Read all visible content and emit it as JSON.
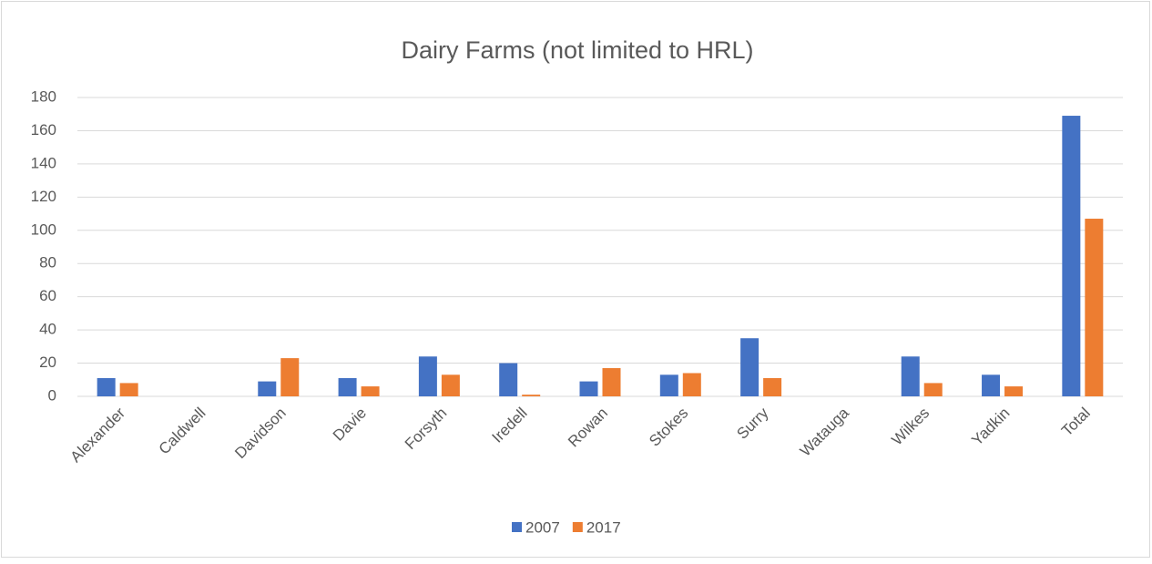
{
  "chart_data": {
    "type": "bar",
    "title": "Dairy Farms (not limited to HRL)",
    "categories": [
      "Alexander",
      "Caldwell",
      "Davidson",
      "Davie",
      "Forsyth",
      "Iredell",
      "Rowan",
      "Stokes",
      "Surry",
      "Watauga",
      "Wilkes",
      "Yadkin",
      "Total"
    ],
    "series": [
      {
        "name": "2007",
        "color": "#4472c4",
        "values": [
          11,
          0,
          9,
          11,
          24,
          20,
          9,
          13,
          35,
          0,
          24,
          13,
          169
        ]
      },
      {
        "name": "2017",
        "color": "#ed7d31",
        "values": [
          8,
          0,
          23,
          6,
          13,
          1,
          17,
          14,
          11,
          0,
          8,
          6,
          107
        ]
      }
    ],
    "ylim": [
      0,
      180
    ],
    "yticks": [
      0,
      20,
      40,
      60,
      80,
      100,
      120,
      140,
      160,
      180
    ],
    "grid": true,
    "legend": "bottom"
  }
}
